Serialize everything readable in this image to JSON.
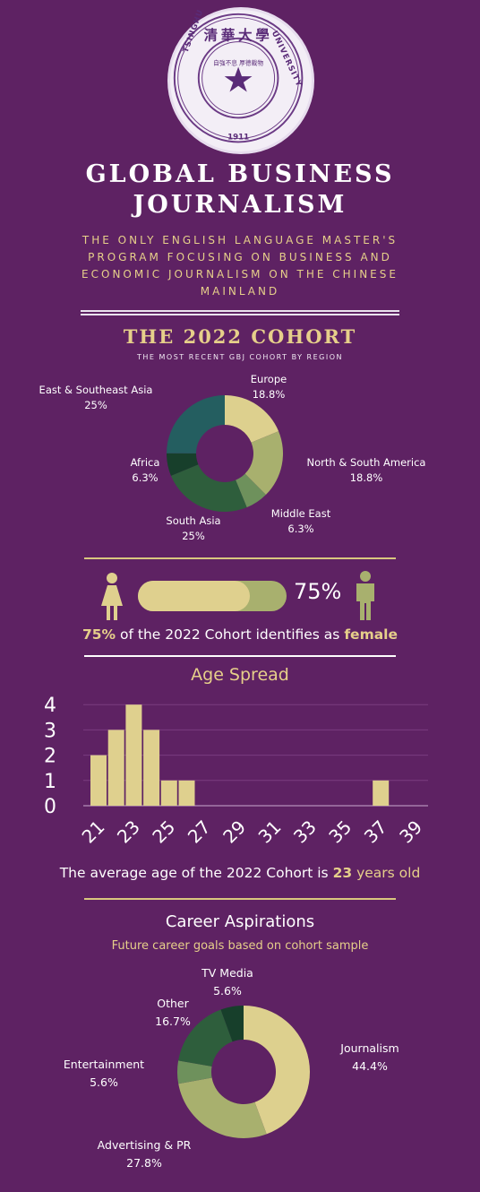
{
  "seal": {
    "top_text": "清華大學",
    "inner_text": "自強不息 厚德載物",
    "left_text": "TSINGHUA",
    "right_text": "UNIVERSITY",
    "year": "1911"
  },
  "header": {
    "title_line1": "GLOBAL BUSINESS",
    "title_line2": "JOURNALISM",
    "subtitle": "THE ONLY ENGLISH LANGUAGE MASTER'S PROGRAM FOCUSING ON BUSINESS AND ECONOMIC JOURNALISM ON THE CHINESE MAINLAND"
  },
  "cohort": {
    "title": "THE 2022 COHORT",
    "subtitle": "THE MOST RECENT GBJ COHORT BY REGION"
  },
  "gender": {
    "percent_label": "75%",
    "sentence_pct": "75%",
    "sentence_mid": " of the 2022 Cohort identifies as ",
    "sentence_word": "female",
    "female_fraction": 0.75
  },
  "age": {
    "title": "Age Spread",
    "sentence_pre": "The average age of the 2022 Cohort is ",
    "sentence_num": "23",
    "sentence_post": " years old"
  },
  "career": {
    "title": "Career Aspirations",
    "subtitle": "Future career goals based on cohort sample"
  },
  "colors": {
    "background": "#5e2263",
    "gold": "#e6cf8a",
    "bar": "#dfd08e"
  },
  "chart_data": [
    {
      "type": "pie",
      "slices": [
        {
          "label": "Europe",
          "value": 18.8,
          "pct": "18.8%",
          "color": "#ddd08e"
        },
        {
          "label": "North & South America",
          "value": 18.8,
          "pct": "18.8%",
          "color": "#a8b06e"
        },
        {
          "label": "Middle East",
          "value": 6.3,
          "pct": "6.3%",
          "color": "#6e915c"
        },
        {
          "label": "South Asia",
          "value": 25,
          "pct": "25%",
          "color": "#2e5e3c"
        },
        {
          "label": "Africa",
          "value": 6.3,
          "pct": "6.3%",
          "color": "#173f2b"
        },
        {
          "label": "East & Southeast Asia",
          "value": 25,
          "pct": "25%",
          "color": "#245e60"
        }
      ]
    },
    {
      "type": "bar",
      "x": [
        21,
        22,
        23,
        24,
        25,
        26,
        27,
        28,
        29,
        30,
        31,
        32,
        33,
        34,
        35,
        36,
        37,
        38,
        39
      ],
      "values": [
        2,
        3,
        4,
        3,
        1,
        1,
        0,
        0,
        0,
        0,
        0,
        0,
        0,
        0,
        0,
        0,
        1,
        0,
        0
      ],
      "tick_labels": [
        "21",
        "23",
        "25",
        "27",
        "29",
        "31",
        "33",
        "35",
        "37",
        "39"
      ],
      "y_ticks": [
        "0",
        "1",
        "2",
        "3",
        "4"
      ],
      "ylim": [
        0,
        4
      ],
      "grid": true
    },
    {
      "type": "pie",
      "slices": [
        {
          "label": "Journalism",
          "value": 44.4,
          "pct": "44.4%",
          "color": "#ddd08e"
        },
        {
          "label": "Advertising & PR",
          "value": 27.8,
          "pct": "27.8%",
          "color": "#a8b06e"
        },
        {
          "label": "Entertainment",
          "value": 5.6,
          "pct": "5.6%",
          "color": "#6e915c"
        },
        {
          "label": "Other",
          "value": 16.7,
          "pct": "16.7%",
          "color": "#2e5e3c"
        },
        {
          "label": "TV Media",
          "value": 5.6,
          "pct": "5.6%",
          "color": "#173f2b"
        }
      ]
    }
  ]
}
